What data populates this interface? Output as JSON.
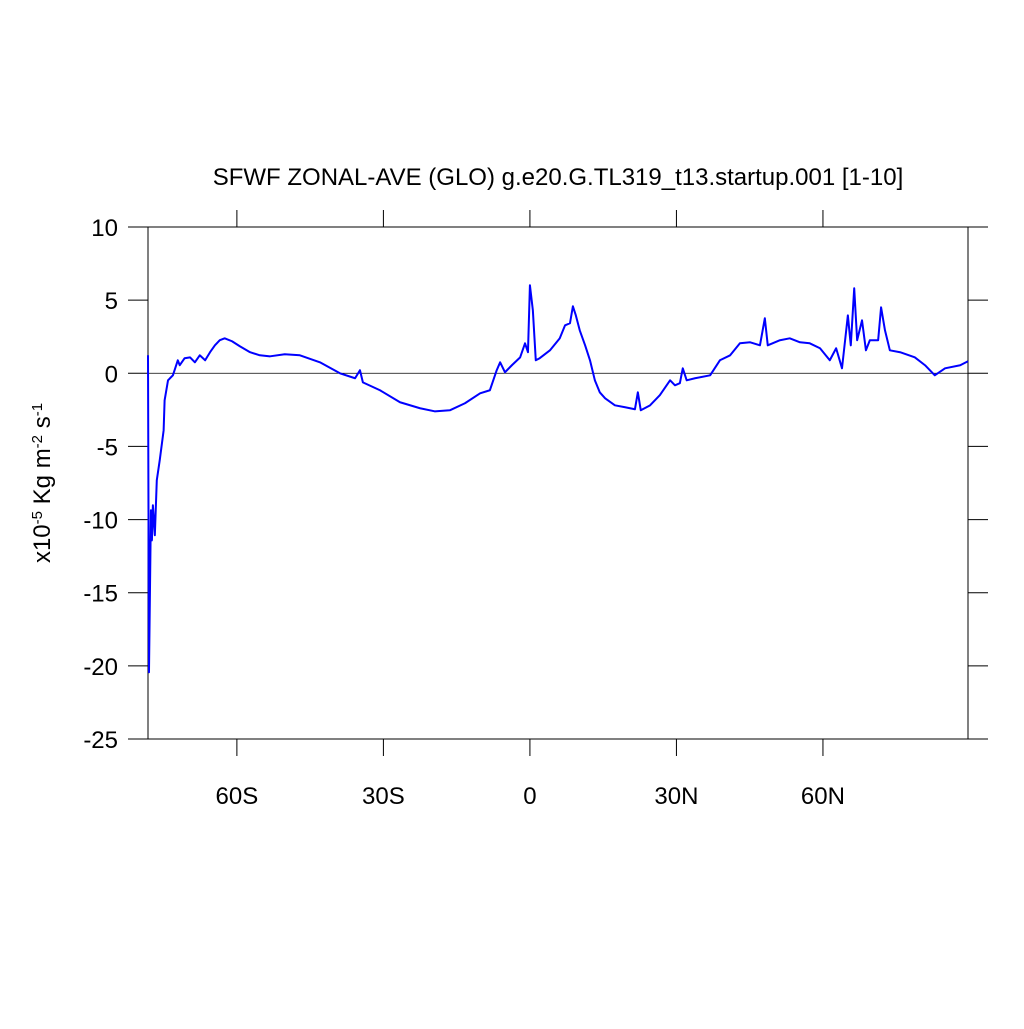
{
  "chart_data": {
    "type": "line",
    "title": "SFWF ZONAL-AVE (GLO) g.e20.G.TL319_t13.startup.001 [1-10]",
    "ylabel": [
      {
        "text": "x10",
        "sup": false
      },
      {
        "text": "-5",
        "sup": true
      },
      {
        "text": " Kg m",
        "sup": false
      },
      {
        "text": "-2",
        "sup": true
      },
      {
        "text": " s",
        "sup": false
      },
      {
        "text": "-1",
        "sup": true
      }
    ],
    "xlim": [
      -78.2,
      89.7
    ],
    "ylim": [
      -25,
      10
    ],
    "xticks": [
      {
        "value": -60,
        "label": "60S"
      },
      {
        "value": -30,
        "label": "30S"
      },
      0,
      {
        "value": 30,
        "label": "30N"
      },
      {
        "value": 60,
        "label": "60N"
      }
    ],
    "yticks": [
      -25,
      -20,
      -15,
      -10,
      -5,
      0,
      5,
      10
    ],
    "reference_line": 0,
    "x": [
      -78.2,
      -78.0,
      -77.6,
      -77.4,
      -77.2,
      -76.8,
      -76.4,
      -75.8,
      -75.0,
      -74.8,
      -74.1,
      -73.7,
      -73.1,
      -72.1,
      -71.7,
      -70.7,
      -69.6,
      -68.6,
      -67.6,
      -66.5,
      -65.5,
      -64.5,
      -63.5,
      -62.5,
      -61.0,
      -59.4,
      -57.3,
      -55.3,
      -53.2,
      -50.2,
      -47.1,
      -43.0,
      -38.9,
      -35.8,
      -34.8,
      -34.2,
      -30.7,
      -26.6,
      -22.5,
      -19.5,
      -16.4,
      -13.3,
      -10.2,
      -8.2,
      -6.8,
      -6.1,
      -5.1,
      -3.7,
      -2.0,
      -1.0,
      -0.4,
      0.0,
      0.6,
      1.2,
      2.0,
      4.1,
      6.1,
      7.2,
      8.2,
      8.8,
      9.4,
      10.2,
      11.3,
      12.3,
      13.3,
      14.3,
      15.4,
      17.4,
      19.5,
      21.5,
      22.1,
      22.7,
      24.6,
      26.6,
      28.7,
      29.7,
      30.7,
      31.3,
      32.1,
      33.8,
      36.9,
      38.9,
      41.0,
      43.0,
      45.1,
      47.1,
      48.1,
      48.7,
      51.2,
      53.2,
      55.3,
      57.3,
      59.4,
      61.4,
      62.7,
      63.9,
      65.1,
      65.7,
      66.4,
      67.0,
      68.0,
      68.8,
      69.6,
      71.3,
      71.9,
      72.7,
      73.7,
      75.8,
      78.8,
      80.9,
      82.9,
      85.0,
      88.1,
      89.7
    ],
    "series": [
      {
        "color": "#0000ff",
        "values": [
          1.23,
          -20.44,
          -9.36,
          -11.42,
          -9.02,
          -11.07,
          -7.31,
          -5.95,
          -3.9,
          -1.85,
          -0.48,
          -0.34,
          -0.14,
          0.89,
          0.55,
          1.03,
          1.09,
          0.75,
          1.23,
          0.89,
          1.44,
          1.91,
          2.26,
          2.39,
          2.19,
          1.85,
          1.44,
          1.23,
          1.16,
          1.3,
          1.23,
          0.75,
          0,
          -0.34,
          0.21,
          -0.62,
          -1.16,
          -1.98,
          -2.39,
          -2.6,
          -2.53,
          -2.05,
          -1.37,
          -1.16,
          0.21,
          0.75,
          0.07,
          0.55,
          1.09,
          2.05,
          1.44,
          6.02,
          4.31,
          0.89,
          1.03,
          1.57,
          2.39,
          3.28,
          3.42,
          4.58,
          3.96,
          2.94,
          1.91,
          0.89,
          -0.48,
          -1.3,
          -1.71,
          -2.19,
          -2.32,
          -2.46,
          -1.3,
          -2.53,
          -2.19,
          -1.5,
          -0.48,
          -0.82,
          -0.68,
          0.34,
          -0.48,
          -0.34,
          -0.14,
          0.89,
          1.23,
          2.05,
          2.12,
          1.91,
          3.76,
          1.91,
          2.26,
          2.39,
          2.12,
          2.05,
          1.71,
          0.89,
          1.71,
          0.34,
          3.96,
          1.91,
          5.81,
          2.26,
          3.62,
          1.57,
          2.26,
          2.26,
          4.51,
          2.94,
          1.57,
          1.44,
          1.09,
          0.55,
          -0.14,
          0.34,
          0.55,
          0.82
        ]
      }
    ]
  }
}
